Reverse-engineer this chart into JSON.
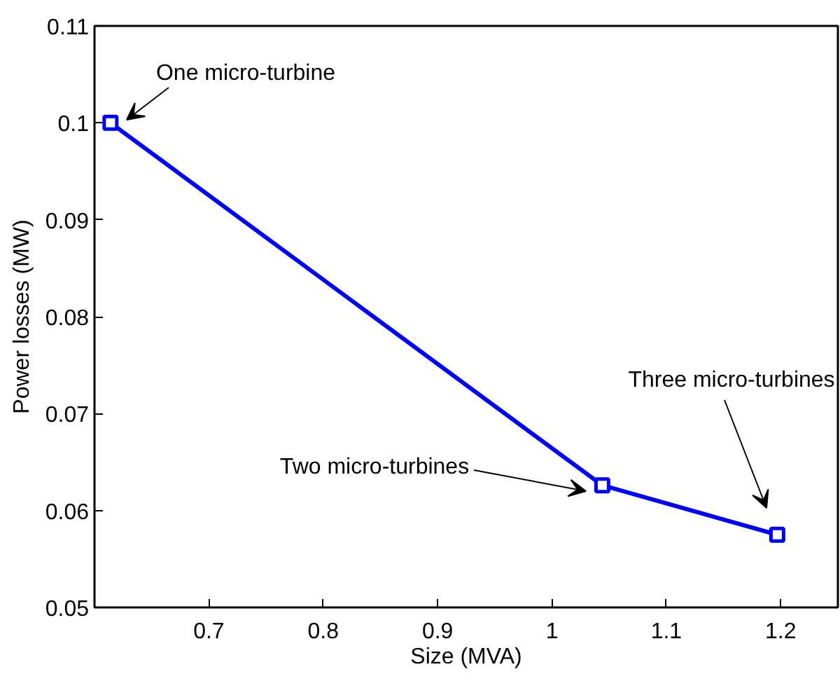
{
  "chart_data": {
    "type": "line",
    "xlabel": "Size (MVA)",
    "ylabel": "Power losses (MW)",
    "x": [
      0.614,
      1.044,
      1.197
    ],
    "series": [
      {
        "color": "#0000ff",
        "values": [
          0.1,
          0.0626,
          0.0575
        ]
      }
    ],
    "xlim": [
      0.6,
      1.25
    ],
    "ylim": [
      0.05,
      0.11
    ],
    "xticks": [
      0.7,
      0.8,
      0.9,
      1,
      1.1,
      1.2
    ],
    "yticks": [
      {
        "value": 0.05,
        "label": "0.05"
      },
      {
        "value": 0.06,
        "label": "0.06"
      },
      {
        "value": 0.07,
        "label": "0.07"
      },
      {
        "value": 0.08,
        "label": "0.08"
      },
      {
        "value": 0.09,
        "label": "0.09"
      },
      {
        "value": 0.1,
        "label": "0.1"
      },
      {
        "value": 0.11,
        "label": "0.11"
      }
    ],
    "grid": false,
    "marker": "square",
    "line_style": "solid",
    "annotations": [
      "One micro-turbine",
      "Two micro-turbines",
      "Three micro-turbines"
    ]
  }
}
